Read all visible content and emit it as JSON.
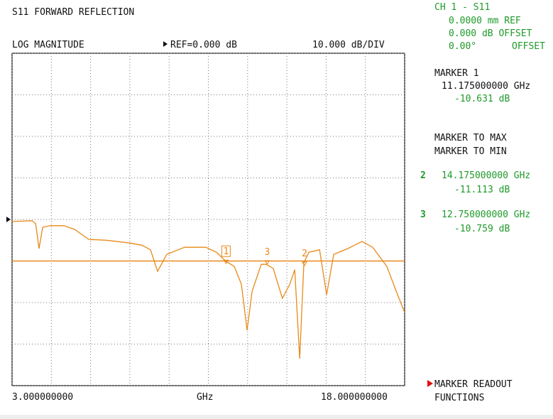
{
  "header": {
    "title": "S11 FORWARD REFLECTION",
    "format": "LOG MAGNITUDE",
    "ref": "REF=0.000 dB",
    "scale": "10.000 dB/DIV"
  },
  "side_panel": {
    "channel": "CH 1 - S11",
    "ref_plane": "0.0000 mm REF",
    "offset_db": "0.000 dB OFFSET",
    "offset_phase": "0.00°",
    "offset_phase_label": "OFFSET",
    "marker1": {
      "title": "MARKER 1",
      "freq": "11.175000000 GHz",
      "value": "-10.631 dB"
    },
    "menu1": "MARKER TO MAX",
    "menu2": "MARKER TO MIN",
    "marker2": {
      "label": "2",
      "freq": "14.175000000 GHz",
      "value": "-11.113 dB"
    },
    "marker3": {
      "label": "3",
      "freq": "12.750000000 GHz",
      "value": "-10.759 dB"
    },
    "footer1": "MARKER READOUT",
    "footer2": "FUNCTIONS"
  },
  "chart_data": {
    "type": "line",
    "x": [
      3.0,
      3.76,
      3.9,
      4.03,
      4.17,
      4.44,
      4.98,
      5.39,
      5.93,
      6.61,
      7.42,
      7.96,
      8.29,
      8.56,
      8.91,
      9.59,
      10.4,
      10.81,
      11.17,
      11.49,
      11.76,
      11.98,
      12.17,
      12.52,
      12.71,
      12.98,
      13.33,
      13.61,
      13.8,
      13.99,
      14.15,
      14.34,
      14.75,
      15.02,
      15.29,
      15.83,
      16.37,
      16.78,
      17.32,
      17.73,
      18.0
    ],
    "series": [
      {
        "color": "#e8891a",
        "values": [
          -0.5,
          -0.3,
          -1,
          -7,
          -1.9,
          -1.5,
          -1.5,
          -2.4,
          -4.8,
          -5,
          -5.6,
          -6.2,
          -7.3,
          -12.5,
          -8.4,
          -6.7,
          -6.7,
          -7.9,
          -10.1,
          -11.3,
          -15.6,
          -26.7,
          -17.3,
          -10.8,
          -10.8,
          -11.8,
          -19,
          -15.6,
          -12.1,
          -33.5,
          -10.4,
          -7.9,
          -7.3,
          -18.1,
          -8.4,
          -7,
          -5.3,
          -6.7,
          -11.3,
          -18.1,
          -22.4
        ]
      }
    ],
    "xlim": [
      3,
      18
    ],
    "ylim": [
      -40,
      40
    ],
    "xticks": [
      3,
      4.5,
      6,
      7.5,
      9,
      10.5,
      12,
      13.5,
      15,
      16.5,
      18
    ],
    "yticks": [
      -40,
      -30,
      -20,
      -10,
      0,
      10,
      20,
      30,
      40
    ],
    "ref_level": 0,
    "limit_line": -10,
    "grid": true,
    "xaxis": {
      "start_label": "3.000000000",
      "unit": "GHz",
      "end_label": "18.000000000"
    },
    "markers": [
      {
        "label": "1",
        "x": 11.175,
        "value": -10.631,
        "boxed": true
      },
      {
        "label": "2",
        "x": 14.175,
        "value": -11.113,
        "boxed": false
      },
      {
        "label": "3",
        "x": 12.75,
        "value": -10.759,
        "boxed": false
      }
    ]
  }
}
